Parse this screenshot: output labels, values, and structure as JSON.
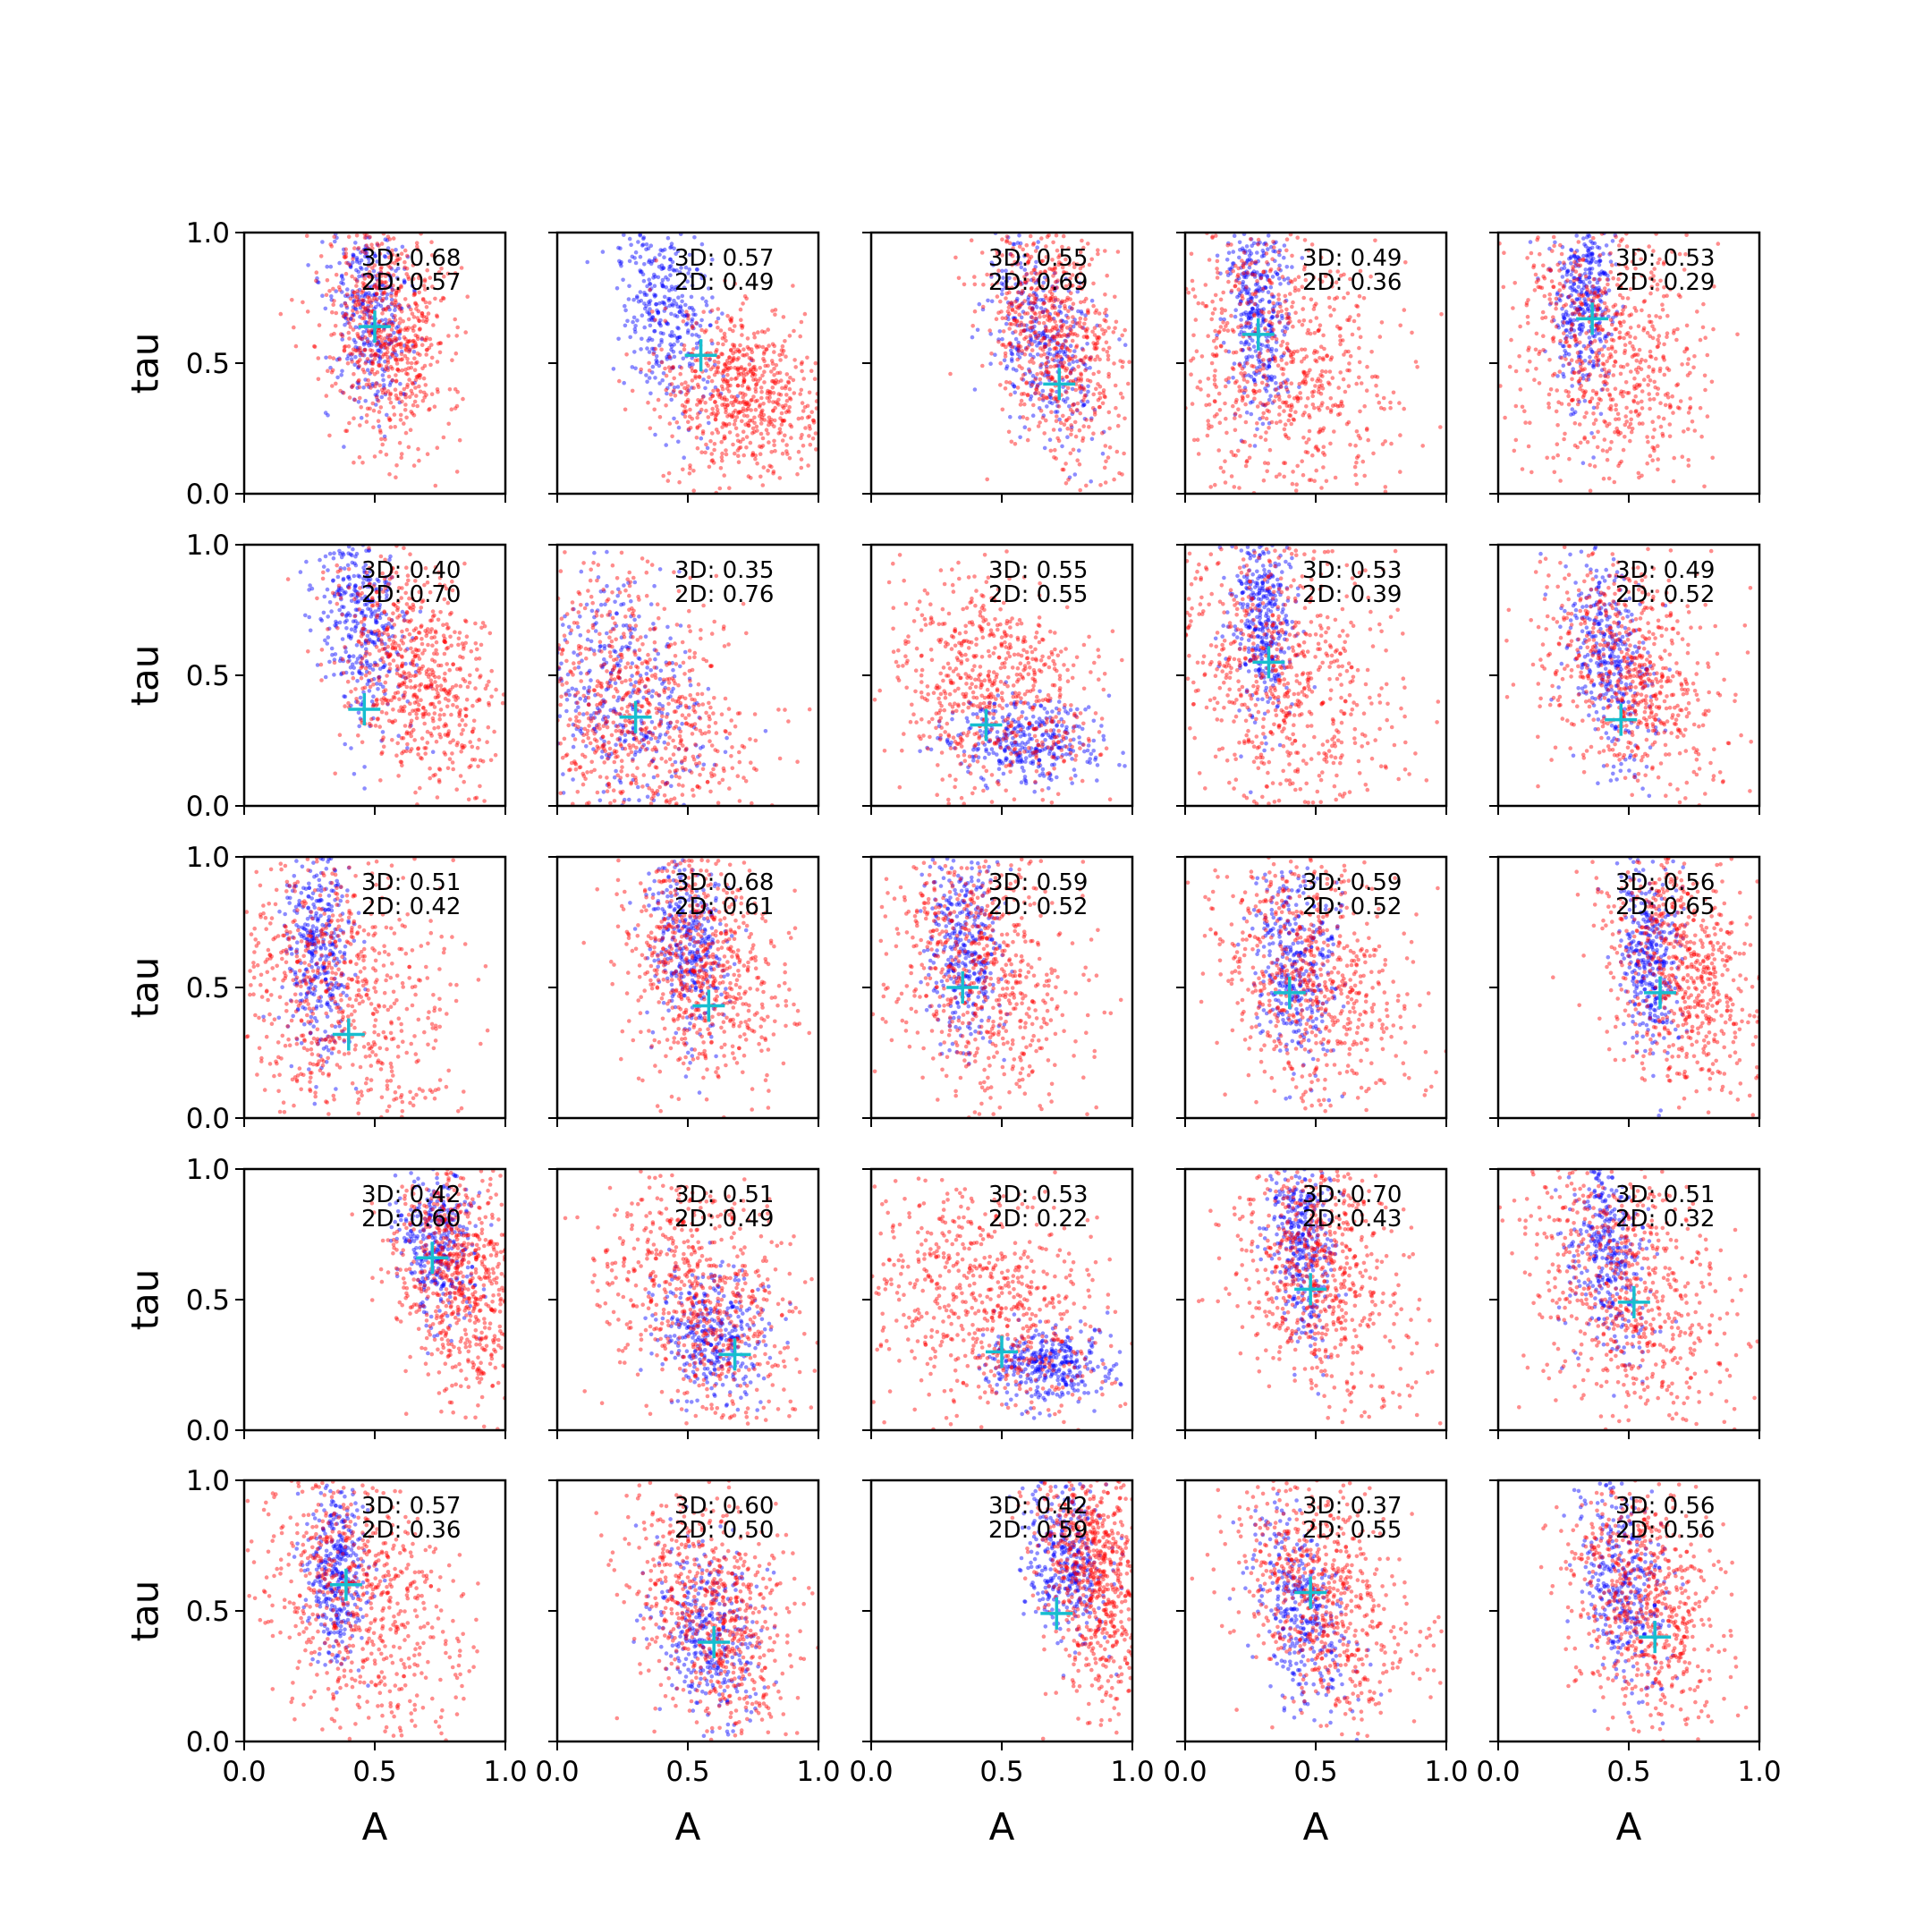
{
  "figure": {
    "rows": 5,
    "cols": 5,
    "xlabel": "A",
    "ylabel": "tau",
    "xlim": [
      0,
      1
    ],
    "ylim": [
      0,
      1
    ],
    "xticks": [
      "0.0",
      "0.5",
      "1.0"
    ],
    "yticks": [
      "0.0",
      "0.5",
      "1.0"
    ],
    "colors": {
      "series_3d": "#0000ff",
      "series_2d": "#ff0000",
      "marker": "#17becf"
    }
  },
  "chart_data": {
    "type": "scatter",
    "xlabel": "A",
    "ylabel": "tau",
    "xlim": [
      0,
      1
    ],
    "ylim": [
      0,
      1
    ],
    "grid": false,
    "legend": "none",
    "panels": [
      {
        "label_3d": "3D: 0.68",
        "label_2d": "2D: 0.57",
        "marker": [
          0.5,
          0.64
        ],
        "blue": {
          "center": [
            0.48,
            0.7
          ],
          "spread": [
            0.07,
            0.2
          ],
          "slope": -0.8,
          "n": 350
        },
        "red": {
          "center": [
            0.55,
            0.63
          ],
          "spread": [
            0.12,
            0.22
          ],
          "slope": -0.7,
          "n": 650
        }
      },
      {
        "label_3d": "3D: 0.57",
        "label_2d": "2D: 0.49",
        "marker": [
          0.55,
          0.53
        ],
        "blue": {
          "center": [
            0.42,
            0.72
          ],
          "spread": [
            0.09,
            0.2
          ],
          "slope": -1.4,
          "n": 350
        },
        "red": {
          "center": [
            0.7,
            0.38
          ],
          "spread": [
            0.16,
            0.16
          ],
          "slope": -0.8,
          "n": 650
        }
      },
      {
        "label_3d": "3D: 0.55",
        "label_2d": "2D: 0.69",
        "marker": [
          0.72,
          0.42
        ],
        "blue": {
          "center": [
            0.65,
            0.6
          ],
          "spread": [
            0.1,
            0.2
          ],
          "slope": -1.3,
          "n": 350
        },
        "red": {
          "center": [
            0.7,
            0.6
          ],
          "spread": [
            0.13,
            0.25
          ],
          "slope": -1.1,
          "n": 650
        }
      },
      {
        "label_3d": "3D: 0.49",
        "label_2d": "2D: 0.36",
        "marker": [
          0.28,
          0.61
        ],
        "blue": {
          "center": [
            0.28,
            0.72
          ],
          "spread": [
            0.06,
            0.2
          ],
          "slope": -0.3,
          "n": 350
        },
        "red": {
          "center": [
            0.38,
            0.5
          ],
          "spread": [
            0.22,
            0.3
          ],
          "slope": -0.6,
          "n": 650
        }
      },
      {
        "label_3d": "3D: 0.53",
        "label_2d": "2D: 0.29",
        "marker": [
          0.36,
          0.67
        ],
        "blue": {
          "center": [
            0.33,
            0.75
          ],
          "spread": [
            0.06,
            0.18
          ],
          "slope": -0.3,
          "n": 350
        },
        "red": {
          "center": [
            0.42,
            0.55
          ],
          "spread": [
            0.18,
            0.28
          ],
          "slope": -0.6,
          "n": 650
        }
      },
      {
        "label_3d": "3D: 0.40",
        "label_2d": "2D: 0.70",
        "marker": [
          0.46,
          0.37
        ],
        "blue": {
          "center": [
            0.45,
            0.72
          ],
          "spread": [
            0.08,
            0.2
          ],
          "slope": -1.1,
          "n": 350
        },
        "red": {
          "center": [
            0.65,
            0.5
          ],
          "spread": [
            0.15,
            0.22
          ],
          "slope": -0.9,
          "n": 650
        }
      },
      {
        "label_3d": "3D: 0.35",
        "label_2d": "2D: 0.76",
        "marker": [
          0.3,
          0.34
        ],
        "blue": {
          "center": [
            0.25,
            0.4
          ],
          "spread": [
            0.15,
            0.25
          ],
          "slope": -1.0,
          "n": 350
        },
        "red": {
          "center": [
            0.3,
            0.35
          ],
          "spread": [
            0.22,
            0.28
          ],
          "slope": -0.9,
          "n": 650
        }
      },
      {
        "label_3d": "3D: 0.55",
        "label_2d": "2D: 0.55",
        "marker": [
          0.44,
          0.31
        ],
        "blue": {
          "center": [
            0.6,
            0.25
          ],
          "spread": [
            0.15,
            0.08
          ],
          "slope": -0.4,
          "n": 350
        },
        "red": {
          "center": [
            0.48,
            0.45
          ],
          "spread": [
            0.2,
            0.22
          ],
          "slope": -0.9,
          "n": 650
        }
      },
      {
        "label_3d": "3D: 0.53",
        "label_2d": "2D: 0.39",
        "marker": [
          0.32,
          0.55
        ],
        "blue": {
          "center": [
            0.3,
            0.72
          ],
          "spread": [
            0.06,
            0.18
          ],
          "slope": -0.3,
          "n": 350
        },
        "red": {
          "center": [
            0.38,
            0.5
          ],
          "spread": [
            0.2,
            0.28
          ],
          "slope": -0.6,
          "n": 650
        }
      },
      {
        "label_3d": "3D: 0.49",
        "label_2d": "2D: 0.52",
        "marker": [
          0.47,
          0.33
        ],
        "blue": {
          "center": [
            0.42,
            0.55
          ],
          "spread": [
            0.08,
            0.2
          ],
          "slope": -1.2,
          "n": 350
        },
        "red": {
          "center": [
            0.5,
            0.5
          ],
          "spread": [
            0.18,
            0.25
          ],
          "slope": -0.9,
          "n": 650
        }
      },
      {
        "label_3d": "3D: 0.51",
        "label_2d": "2D: 0.42",
        "marker": [
          0.4,
          0.32
        ],
        "blue": {
          "center": [
            0.28,
            0.68
          ],
          "spread": [
            0.06,
            0.22
          ],
          "slope": -0.4,
          "n": 350
        },
        "red": {
          "center": [
            0.35,
            0.5
          ],
          "spread": [
            0.22,
            0.3
          ],
          "slope": -0.6,
          "n": 650
        }
      },
      {
        "label_3d": "3D: 0.68",
        "label_2d": "2D: 0.61",
        "marker": [
          0.58,
          0.43
        ],
        "blue": {
          "center": [
            0.5,
            0.65
          ],
          "spread": [
            0.07,
            0.18
          ],
          "slope": -0.8,
          "n": 350
        },
        "red": {
          "center": [
            0.55,
            0.58
          ],
          "spread": [
            0.15,
            0.25
          ],
          "slope": -0.7,
          "n": 650
        }
      },
      {
        "label_3d": "3D: 0.59",
        "label_2d": "2D: 0.52",
        "marker": [
          0.35,
          0.5
        ],
        "blue": {
          "center": [
            0.36,
            0.65
          ],
          "spread": [
            0.07,
            0.2
          ],
          "slope": -0.5,
          "n": 350
        },
        "red": {
          "center": [
            0.42,
            0.55
          ],
          "spread": [
            0.18,
            0.28
          ],
          "slope": -0.6,
          "n": 650
        }
      },
      {
        "label_3d": "3D: 0.59",
        "label_2d": "2D: 0.52",
        "marker": [
          0.4,
          0.48
        ],
        "blue": {
          "center": [
            0.42,
            0.6
          ],
          "spread": [
            0.08,
            0.2
          ],
          "slope": -0.8,
          "n": 350
        },
        "red": {
          "center": [
            0.48,
            0.55
          ],
          "spread": [
            0.18,
            0.25
          ],
          "slope": -0.8,
          "n": 650
        }
      },
      {
        "label_3d": "3D: 0.56",
        "label_2d": "2D: 0.65",
        "marker": [
          0.62,
          0.48
        ],
        "blue": {
          "center": [
            0.58,
            0.62
          ],
          "spread": [
            0.06,
            0.18
          ],
          "slope": -0.7,
          "n": 350
        },
        "red": {
          "center": [
            0.7,
            0.58
          ],
          "spread": [
            0.14,
            0.24
          ],
          "slope": -0.8,
          "n": 650
        }
      },
      {
        "label_3d": "3D: 0.42",
        "label_2d": "2D: 0.60",
        "marker": [
          0.72,
          0.66
        ],
        "blue": {
          "center": [
            0.74,
            0.72
          ],
          "spread": [
            0.08,
            0.15
          ],
          "slope": -0.6,
          "n": 350
        },
        "red": {
          "center": [
            0.82,
            0.6
          ],
          "spread": [
            0.12,
            0.25
          ],
          "slope": -0.8,
          "n": 650
        }
      },
      {
        "label_3d": "3D: 0.51",
        "label_2d": "2D: 0.49",
        "marker": [
          0.68,
          0.29
        ],
        "blue": {
          "center": [
            0.6,
            0.35
          ],
          "spread": [
            0.1,
            0.12
          ],
          "slope": -0.8,
          "n": 350
        },
        "red": {
          "center": [
            0.55,
            0.5
          ],
          "spread": [
            0.18,
            0.25
          ],
          "slope": -0.9,
          "n": 650
        }
      },
      {
        "label_3d": "3D: 0.53",
        "label_2d": "2D: 0.22",
        "marker": [
          0.5,
          0.3
        ],
        "blue": {
          "center": [
            0.68,
            0.25
          ],
          "spread": [
            0.12,
            0.07
          ],
          "slope": -0.3,
          "n": 350
        },
        "red": {
          "center": [
            0.45,
            0.5
          ],
          "spread": [
            0.22,
            0.24
          ],
          "slope": -0.9,
          "n": 650
        }
      },
      {
        "label_3d": "3D: 0.70",
        "label_2d": "2D: 0.43",
        "marker": [
          0.48,
          0.54
        ],
        "blue": {
          "center": [
            0.45,
            0.72
          ],
          "spread": [
            0.06,
            0.18
          ],
          "slope": -0.6,
          "n": 350
        },
        "red": {
          "center": [
            0.52,
            0.6
          ],
          "spread": [
            0.16,
            0.26
          ],
          "slope": -0.7,
          "n": 650
        }
      },
      {
        "label_3d": "3D: 0.51",
        "label_2d": "2D: 0.32",
        "marker": [
          0.52,
          0.49
        ],
        "blue": {
          "center": [
            0.42,
            0.68
          ],
          "spread": [
            0.07,
            0.2
          ],
          "slope": -0.7,
          "n": 350
        },
        "red": {
          "center": [
            0.5,
            0.55
          ],
          "spread": [
            0.18,
            0.28
          ],
          "slope": -0.8,
          "n": 650
        }
      },
      {
        "label_3d": "3D: 0.57",
        "label_2d": "2D: 0.36",
        "marker": [
          0.39,
          0.6
        ],
        "blue": {
          "center": [
            0.35,
            0.65
          ],
          "spread": [
            0.06,
            0.18
          ],
          "slope": -0.4,
          "n": 350
        },
        "red": {
          "center": [
            0.45,
            0.55
          ],
          "spread": [
            0.18,
            0.28
          ],
          "slope": -0.7,
          "n": 650
        }
      },
      {
        "label_3d": "3D: 0.60",
        "label_2d": "2D: 0.50",
        "marker": [
          0.6,
          0.38
        ],
        "blue": {
          "center": [
            0.58,
            0.42
          ],
          "spread": [
            0.1,
            0.18
          ],
          "slope": -1.0,
          "n": 350
        },
        "red": {
          "center": [
            0.6,
            0.5
          ],
          "spread": [
            0.15,
            0.24
          ],
          "slope": -1.0,
          "n": 650
        }
      },
      {
        "label_3d": "3D: 0.42",
        "label_2d": "2D: 0.59",
        "marker": [
          0.71,
          0.49
        ],
        "blue": {
          "center": [
            0.75,
            0.7
          ],
          "spread": [
            0.08,
            0.15
          ],
          "slope": -0.8,
          "n": 350
        },
        "red": {
          "center": [
            0.85,
            0.65
          ],
          "spread": [
            0.1,
            0.25
          ],
          "slope": -0.8,
          "n": 650
        }
      },
      {
        "label_3d": "3D: 0.37",
        "label_2d": "2D: 0.55",
        "marker": [
          0.48,
          0.57
        ],
        "blue": {
          "center": [
            0.45,
            0.5
          ],
          "spread": [
            0.09,
            0.2
          ],
          "slope": -1.0,
          "n": 350
        },
        "red": {
          "center": [
            0.52,
            0.55
          ],
          "spread": [
            0.16,
            0.25
          ],
          "slope": -0.9,
          "n": 650
        }
      },
      {
        "label_3d": "3D: 0.56",
        "label_2d": "2D: 0.56",
        "marker": [
          0.6,
          0.4
        ],
        "blue": {
          "center": [
            0.48,
            0.6
          ],
          "spread": [
            0.08,
            0.2
          ],
          "slope": -1.0,
          "n": 350
        },
        "red": {
          "center": [
            0.55,
            0.55
          ],
          "spread": [
            0.14,
            0.25
          ],
          "slope": -0.9,
          "n": 650
        }
      }
    ]
  }
}
